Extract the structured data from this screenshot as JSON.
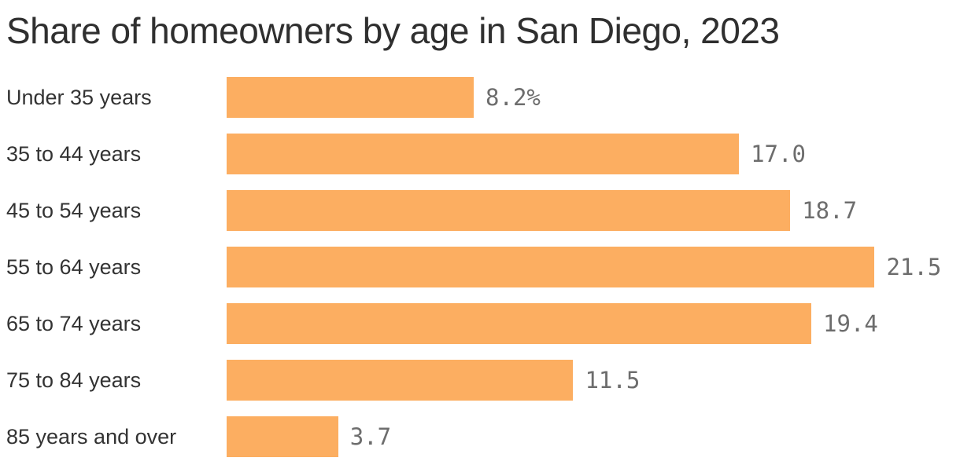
{
  "title": "Share of homeowners by age in San Diego, 2023",
  "chart_data": {
    "type": "bar",
    "orientation": "horizontal",
    "title": "Share of homeowners by age in San Diego, 2023",
    "categories": [
      "Under 35 years",
      "35 to 44 years",
      "45 to 54 years",
      "55 to 64 years",
      "65 to 74 years",
      "75 to 84 years",
      "85 years and over"
    ],
    "values": [
      8.2,
      17.0,
      18.7,
      21.5,
      19.4,
      11.5,
      3.7
    ],
    "value_labels": [
      "8.2%",
      "17.0",
      "18.7",
      "21.5",
      "19.4",
      "11.5",
      "3.7"
    ],
    "unit": "percent",
    "xlabel": "",
    "ylabel": "",
    "xlim": [
      0,
      24.3
    ],
    "grid": false,
    "legend": "none",
    "bar_color": "#fcae61",
    "category_label_color": "#333333",
    "value_label_color": "#6d6d6d",
    "title_color": "#2f2f2f"
  }
}
